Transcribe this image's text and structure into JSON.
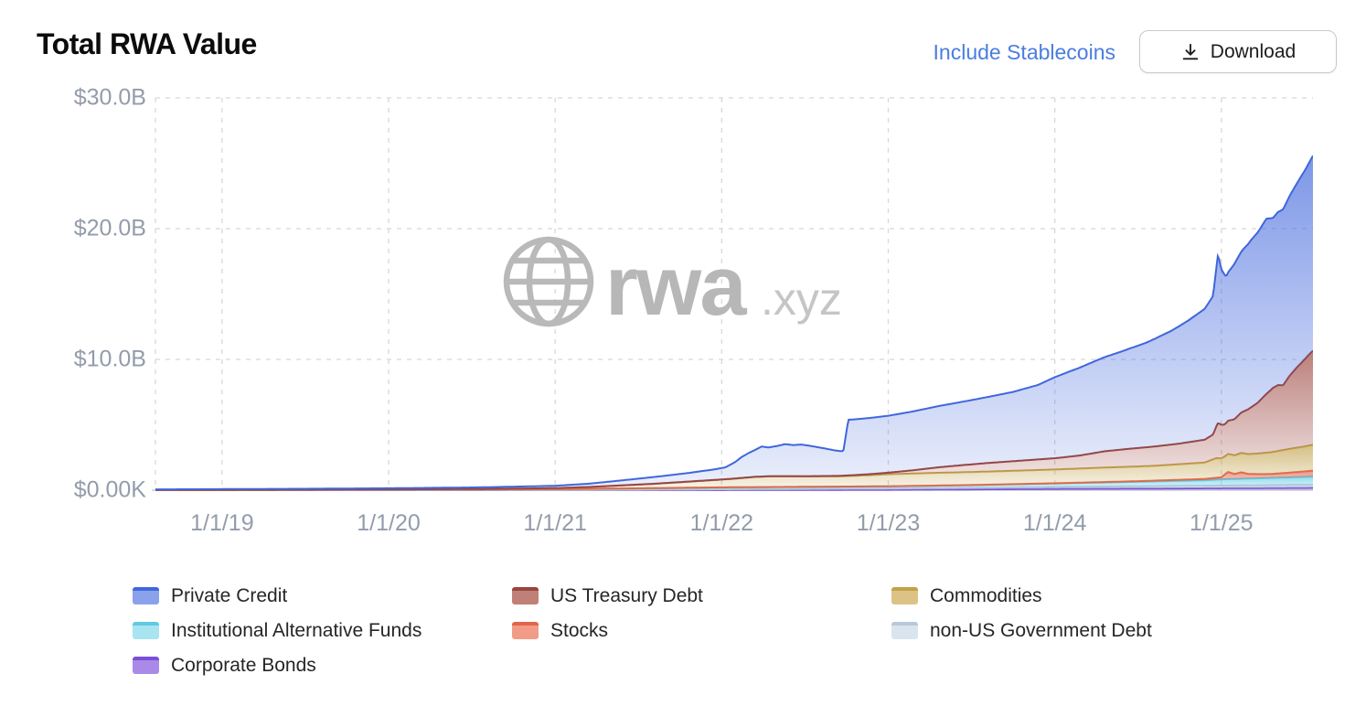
{
  "page": {
    "title": "Total RWA Value",
    "stablecoins_toggle": "Include Stablecoins",
    "download_label": "Download"
  },
  "watermark": {
    "brand": "rwa",
    "suffix": ".xyz"
  },
  "chart_data": {
    "type": "area",
    "stacked": true,
    "title": "Total RWA Value",
    "unit": "USD billions",
    "grid": "dashed",
    "legend_position": "bottom",
    "xlim": [
      2018.6,
      2025.55
    ],
    "ylim": [
      0,
      30
    ],
    "y_ticks": [
      {
        "label": "$30.0B",
        "value": 30
      },
      {
        "label": "$20.0B",
        "value": 20
      },
      {
        "label": "$10.0B",
        "value": 10
      },
      {
        "label": "$0.00K",
        "value": 0
      }
    ],
    "x_ticks": [
      {
        "label": "1/1/19",
        "value": 2019
      },
      {
        "label": "1/1/20",
        "value": 2020
      },
      {
        "label": "1/1/21",
        "value": 2021
      },
      {
        "label": "1/1/22",
        "value": 2022
      },
      {
        "label": "1/1/23",
        "value": 2023
      },
      {
        "label": "1/1/24",
        "value": 2024
      },
      {
        "label": "1/1/25",
        "value": 2025
      }
    ],
    "legend_order": [
      6,
      5,
      4,
      2,
      3,
      1,
      0
    ],
    "series": [
      {
        "name": "Corporate Bonds",
        "stroke": "#7a4ed8",
        "fill": "#a98ae9",
        "points": [
          [
            2018.6,
            0
          ],
          [
            2021.0,
            0.005
          ],
          [
            2022.0,
            0.01
          ],
          [
            2023.0,
            0.03
          ],
          [
            2023.5,
            0.06
          ],
          [
            2024.0,
            0.1
          ],
          [
            2024.5,
            0.12
          ],
          [
            2025.0,
            0.15
          ],
          [
            2025.55,
            0.18
          ]
        ]
      },
      {
        "name": "non-US Government Debt",
        "stroke": "#b7c9d9",
        "fill": "#dae4ee",
        "points": [
          [
            2018.6,
            0
          ],
          [
            2021.0,
            0.01
          ],
          [
            2021.5,
            0.03
          ],
          [
            2022.0,
            0.06
          ],
          [
            2022.5,
            0.08
          ],
          [
            2023.0,
            0.1
          ],
          [
            2023.5,
            0.12
          ],
          [
            2024.0,
            0.15
          ],
          [
            2024.5,
            0.18
          ],
          [
            2025.0,
            0.2
          ],
          [
            2025.55,
            0.23
          ]
        ]
      },
      {
        "name": "Institutional Alternative Funds",
        "stroke": "#5ecae3",
        "fill": "#a9e4f1",
        "points": [
          [
            2018.6,
            0.01
          ],
          [
            2019.5,
            0.02
          ],
          [
            2020.0,
            0.03
          ],
          [
            2020.5,
            0.04
          ],
          [
            2021.0,
            0.06
          ],
          [
            2021.5,
            0.1
          ],
          [
            2022.0,
            0.14
          ],
          [
            2022.5,
            0.15
          ],
          [
            2023.0,
            0.16
          ],
          [
            2023.5,
            0.2
          ],
          [
            2024.0,
            0.26
          ],
          [
            2024.5,
            0.34
          ],
          [
            2024.9,
            0.42
          ],
          [
            2025.0,
            0.48
          ],
          [
            2025.2,
            0.53
          ],
          [
            2025.4,
            0.58
          ],
          [
            2025.55,
            0.63
          ]
        ]
      },
      {
        "name": "Stocks",
        "stroke": "#e2654b",
        "fill": "#f29c88",
        "points": [
          [
            2018.6,
            0
          ],
          [
            2023.0,
            0.01
          ],
          [
            2024.0,
            0.02
          ],
          [
            2024.5,
            0.05
          ],
          [
            2024.9,
            0.1
          ],
          [
            2025.0,
            0.16
          ],
          [
            2025.04,
            0.55
          ],
          [
            2025.08,
            0.38
          ],
          [
            2025.12,
            0.5
          ],
          [
            2025.16,
            0.36
          ],
          [
            2025.22,
            0.32
          ],
          [
            2025.3,
            0.3
          ],
          [
            2025.4,
            0.36
          ],
          [
            2025.5,
            0.42
          ],
          [
            2025.55,
            0.46
          ]
        ]
      },
      {
        "name": "Commodities",
        "stroke": "#c2a14a",
        "fill": "#dcc385",
        "points": [
          [
            2018.6,
            0
          ],
          [
            2020.0,
            0.01
          ],
          [
            2020.6,
            0.03
          ],
          [
            2021.0,
            0.07
          ],
          [
            2021.2,
            0.13
          ],
          [
            2021.4,
            0.23
          ],
          [
            2021.6,
            0.33
          ],
          [
            2021.8,
            0.46
          ],
          [
            2021.95,
            0.56
          ],
          [
            2022.05,
            0.63
          ],
          [
            2022.2,
            0.78
          ],
          [
            2022.3,
            0.82
          ],
          [
            2022.5,
            0.8
          ],
          [
            2022.7,
            0.78
          ],
          [
            2022.9,
            0.86
          ],
          [
            2023.0,
            0.92
          ],
          [
            2023.3,
            0.97
          ],
          [
            2023.6,
            1.0
          ],
          [
            2024.0,
            1.05
          ],
          [
            2024.3,
            1.1
          ],
          [
            2024.6,
            1.13
          ],
          [
            2024.9,
            1.25
          ],
          [
            2024.97,
            1.5
          ],
          [
            2025.03,
            1.36
          ],
          [
            2025.1,
            1.45
          ],
          [
            2025.2,
            1.55
          ],
          [
            2025.3,
            1.66
          ],
          [
            2025.4,
            1.8
          ],
          [
            2025.5,
            1.9
          ],
          [
            2025.55,
            1.97
          ]
        ]
      },
      {
        "name": "US Treasury Debt",
        "stroke": "#9a443e",
        "fill": "#c08078",
        "points": [
          [
            2018.6,
            0
          ],
          [
            2022.5,
            0.01
          ],
          [
            2022.8,
            0.05
          ],
          [
            2023.0,
            0.12
          ],
          [
            2023.15,
            0.25
          ],
          [
            2023.3,
            0.42
          ],
          [
            2023.45,
            0.55
          ],
          [
            2023.6,
            0.66
          ],
          [
            2023.8,
            0.76
          ],
          [
            2024.0,
            0.86
          ],
          [
            2024.15,
            1.0
          ],
          [
            2024.3,
            1.25
          ],
          [
            2024.45,
            1.38
          ],
          [
            2024.6,
            1.48
          ],
          [
            2024.75,
            1.58
          ],
          [
            2024.9,
            1.75
          ],
          [
            2024.95,
            1.9
          ],
          [
            2024.98,
            2.7
          ],
          [
            2025.02,
            2.45
          ],
          [
            2025.07,
            2.7
          ],
          [
            2025.12,
            3.1
          ],
          [
            2025.17,
            3.5
          ],
          [
            2025.22,
            3.9
          ],
          [
            2025.27,
            4.5
          ],
          [
            2025.31,
            4.9
          ],
          [
            2025.34,
            5.05
          ],
          [
            2025.37,
            4.95
          ],
          [
            2025.41,
            5.6
          ],
          [
            2025.45,
            6.1
          ],
          [
            2025.49,
            6.55
          ],
          [
            2025.52,
            6.9
          ],
          [
            2025.55,
            7.2
          ]
        ]
      },
      {
        "name": "Private Credit",
        "stroke": "#4066dc",
        "fill": "#8aa2ec",
        "points": [
          [
            2018.6,
            0.05
          ],
          [
            2019.5,
            0.07
          ],
          [
            2020.0,
            0.09
          ],
          [
            2020.5,
            0.12
          ],
          [
            2021.0,
            0.18
          ],
          [
            2021.2,
            0.25
          ],
          [
            2021.4,
            0.38
          ],
          [
            2021.6,
            0.52
          ],
          [
            2021.8,
            0.66
          ],
          [
            2021.95,
            0.8
          ],
          [
            2022.02,
            0.9
          ],
          [
            2022.08,
            1.25
          ],
          [
            2022.12,
            1.6
          ],
          [
            2022.16,
            1.85
          ],
          [
            2022.2,
            2.05
          ],
          [
            2022.24,
            2.3
          ],
          [
            2022.28,
            2.2
          ],
          [
            2022.33,
            2.3
          ],
          [
            2022.38,
            2.45
          ],
          [
            2022.43,
            2.38
          ],
          [
            2022.48,
            2.42
          ],
          [
            2022.53,
            2.32
          ],
          [
            2022.58,
            2.2
          ],
          [
            2022.63,
            2.08
          ],
          [
            2022.68,
            1.95
          ],
          [
            2022.73,
            1.86
          ],
          [
            2022.76,
            4.25
          ],
          [
            2022.9,
            4.3
          ],
          [
            2023.0,
            4.35
          ],
          [
            2023.15,
            4.5
          ],
          [
            2023.3,
            4.68
          ],
          [
            2023.45,
            4.85
          ],
          [
            2023.6,
            5.05
          ],
          [
            2023.75,
            5.3
          ],
          [
            2023.9,
            5.7
          ],
          [
            2024.0,
            6.2
          ],
          [
            2024.1,
            6.55
          ],
          [
            2024.25,
            7.05
          ],
          [
            2024.4,
            7.5
          ],
          [
            2024.55,
            8.0
          ],
          [
            2024.7,
            8.7
          ],
          [
            2024.8,
            9.3
          ],
          [
            2024.9,
            10.0
          ],
          [
            2024.95,
            10.6
          ],
          [
            2024.98,
            12.9
          ],
          [
            2025.0,
            11.9
          ],
          [
            2025.03,
            11.2
          ],
          [
            2025.08,
            11.9
          ],
          [
            2025.13,
            12.4
          ],
          [
            2025.18,
            12.8
          ],
          [
            2025.23,
            13.1
          ],
          [
            2025.27,
            13.4
          ],
          [
            2025.31,
            13.0
          ],
          [
            2025.35,
            13.3
          ],
          [
            2025.39,
            13.6
          ],
          [
            2025.43,
            13.9
          ],
          [
            2025.47,
            14.2
          ],
          [
            2025.51,
            14.5
          ],
          [
            2025.55,
            14.9
          ]
        ]
      }
    ]
  }
}
